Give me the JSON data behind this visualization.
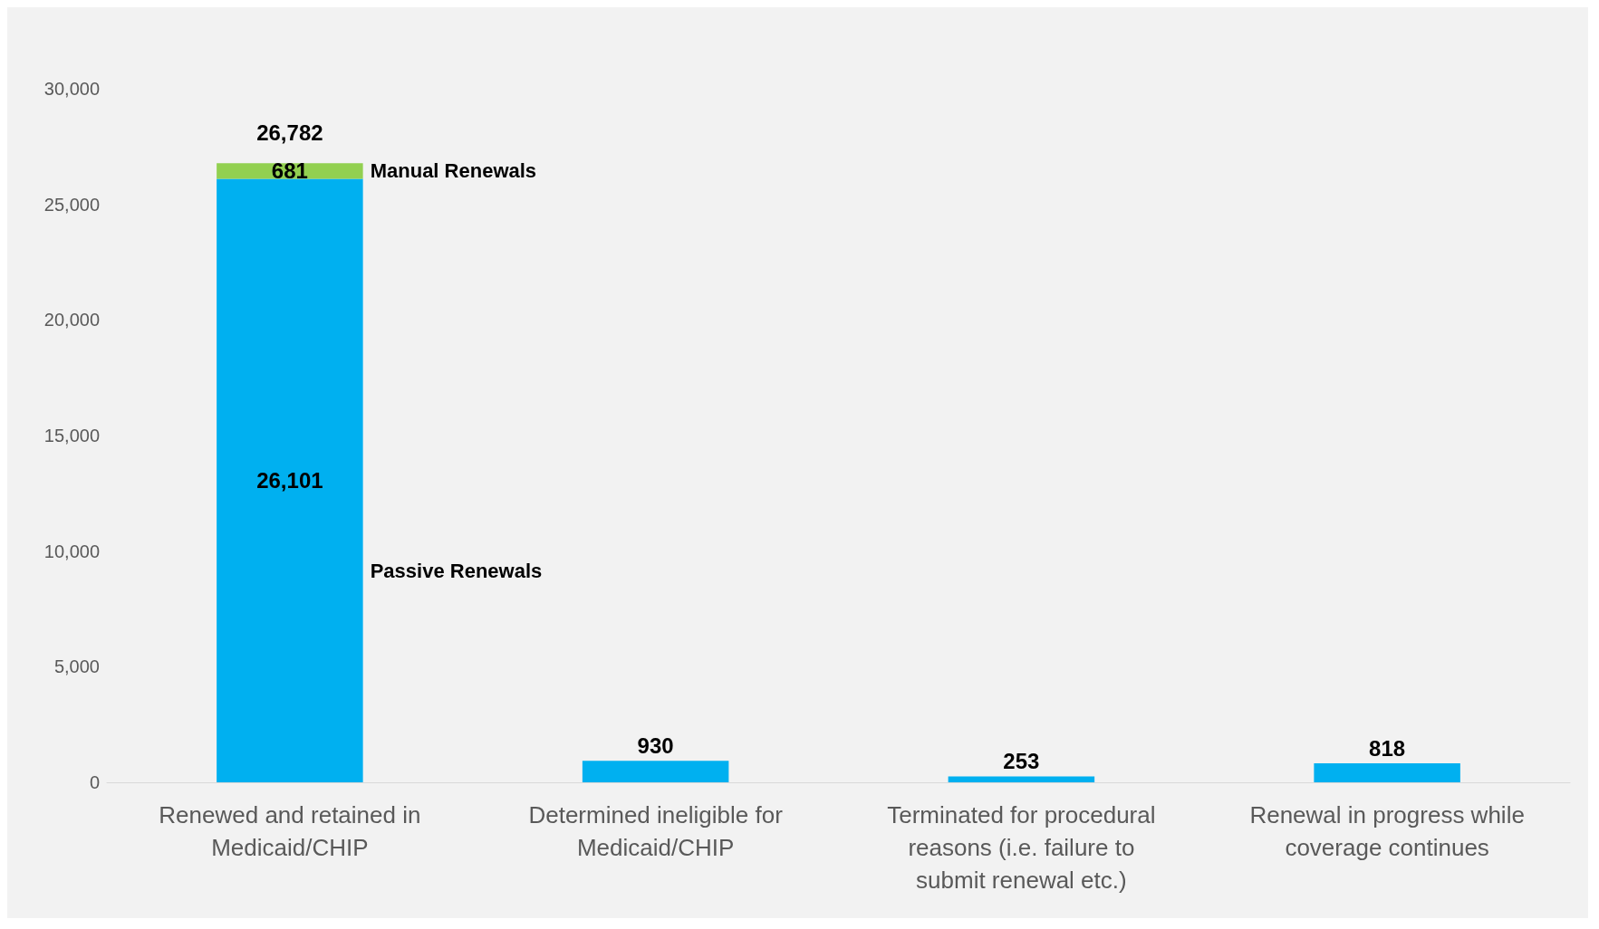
{
  "chart_data": {
    "type": "bar",
    "stacked": true,
    "categories": [
      "Renewed and retained in Medicaid/CHIP",
      "Determined ineligible for Medicaid/CHIP",
      "Terminated for procedural reasons (i.e. failure to submit renewal etc.)",
      "Renewal in progress while coverage continues"
    ],
    "series": [
      {
        "name": "Passive Renewals",
        "color": "#00b0f0",
        "values": [
          26101,
          930,
          253,
          818
        ],
        "value_labels": [
          "26,101",
          "930",
          "253",
          "818"
        ]
      },
      {
        "name": "Manual Renewals",
        "color": "#92d050",
        "values": [
          681,
          null,
          null,
          null
        ],
        "value_labels": [
          "681",
          null,
          null,
          null
        ]
      }
    ],
    "totals": [
      "26,782",
      null,
      null,
      null
    ],
    "ylim": [
      0,
      30000
    ],
    "yticks": [
      {
        "value": 0,
        "label": "0"
      },
      {
        "value": 5000,
        "label": "5,000"
      },
      {
        "value": 10000,
        "label": "10,000"
      },
      {
        "value": 15000,
        "label": "15,000"
      },
      {
        "value": 20000,
        "label": "20,000"
      },
      {
        "value": 25000,
        "label": "25,000"
      },
      {
        "value": 30000,
        "label": "30,000"
      }
    ],
    "grid": false,
    "legend": false
  }
}
